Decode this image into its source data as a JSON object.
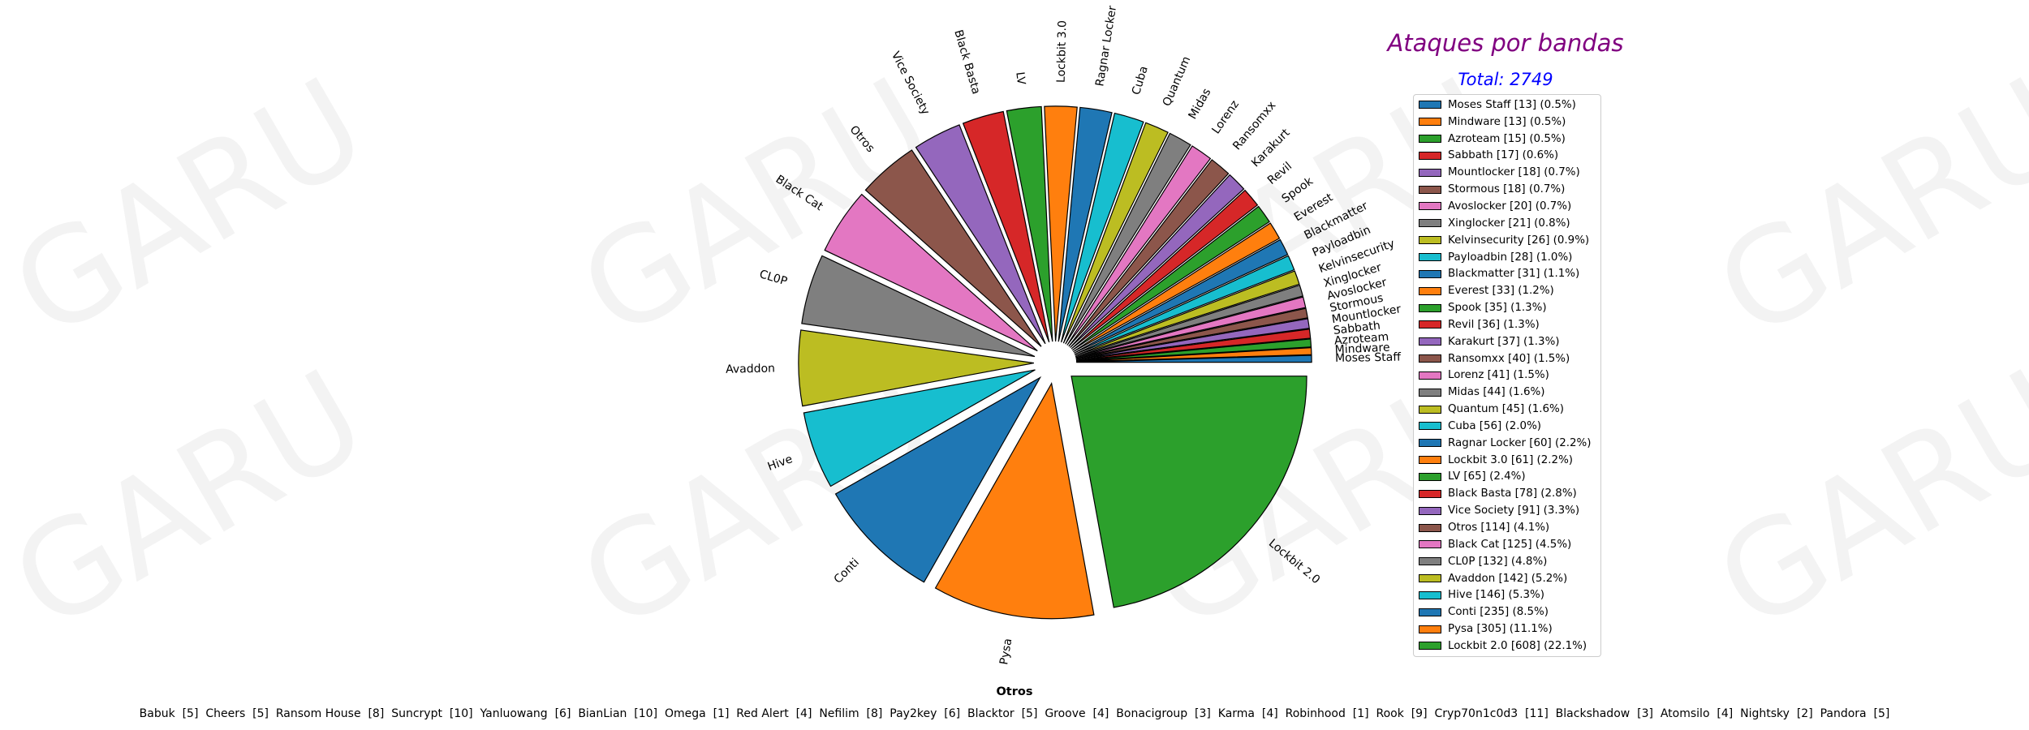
{
  "watermark": "GARU",
  "chart_data": {
    "type": "pie",
    "title": "Ataques por bandas",
    "subtitle": "Total: 2749",
    "legend_position": "right",
    "slices": [
      {
        "label": "Moses Staff",
        "value": 13,
        "legend": "Moses Staff [13] (0.5%)",
        "color": "#1f77b4"
      },
      {
        "label": "Mindware",
        "value": 13,
        "legend": "Mindware [13] (0.5%)",
        "color": "#ff7f0e"
      },
      {
        "label": "Azroteam",
        "value": 15,
        "legend": "Azroteam [15] (0.5%)",
        "color": "#2ca02c"
      },
      {
        "label": "Sabbath",
        "value": 17,
        "legend": "Sabbath [17] (0.6%)",
        "color": "#d62728"
      },
      {
        "label": "Mountlocker",
        "value": 18,
        "legend": "Mountlocker [18] (0.7%)",
        "color": "#9467bd"
      },
      {
        "label": "Stormous",
        "value": 18,
        "legend": "Stormous [18] (0.7%)",
        "color": "#8c564b"
      },
      {
        "label": "Avoslocker",
        "value": 20,
        "legend": "Avoslocker [20] (0.7%)",
        "color": "#e377c2"
      },
      {
        "label": "Xinglocker",
        "value": 21,
        "legend": "Xinglocker [21] (0.8%)",
        "color": "#7f7f7f"
      },
      {
        "label": "Kelvinsecurity",
        "value": 26,
        "legend": "Kelvinsecurity [26] (0.9%)",
        "color": "#bcbd22"
      },
      {
        "label": "Payloadbin",
        "value": 28,
        "legend": "Payloadbin [28] (1.0%)",
        "color": "#17becf"
      },
      {
        "label": "Blackmatter",
        "value": 31,
        "legend": "Blackmatter [31] (1.1%)",
        "color": "#1f77b4"
      },
      {
        "label": "Everest",
        "value": 33,
        "legend": "Everest [33] (1.2%)",
        "color": "#ff7f0e"
      },
      {
        "label": "Spook",
        "value": 35,
        "legend": "Spook [35] (1.3%)",
        "color": "#2ca02c"
      },
      {
        "label": "Revil",
        "value": 36,
        "legend": "Revil [36] (1.3%)",
        "color": "#d62728"
      },
      {
        "label": "Karakurt",
        "value": 37,
        "legend": "Karakurt [37] (1.3%)",
        "color": "#9467bd"
      },
      {
        "label": "Ransomxx",
        "value": 40,
        "legend": "Ransomxx [40] (1.5%)",
        "color": "#8c564b"
      },
      {
        "label": "Lorenz",
        "value": 41,
        "legend": "Lorenz [41] (1.5%)",
        "color": "#e377c2"
      },
      {
        "label": "Midas",
        "value": 44,
        "legend": "Midas [44] (1.6%)",
        "color": "#7f7f7f"
      },
      {
        "label": "Quantum",
        "value": 45,
        "legend": "Quantum [45] (1.6%)",
        "color": "#bcbd22"
      },
      {
        "label": "Cuba",
        "value": 56,
        "legend": "Cuba [56] (2.0%)",
        "color": "#17becf"
      },
      {
        "label": "Ragnar Locker",
        "value": 60,
        "legend": "Ragnar Locker [60] (2.2%)",
        "color": "#1f77b4"
      },
      {
        "label": "Lockbit 3.0",
        "value": 61,
        "legend": "Lockbit 3.0 [61] (2.2%)",
        "color": "#ff7f0e"
      },
      {
        "label": "LV",
        "value": 65,
        "legend": "LV [65] (2.4%)",
        "color": "#2ca02c"
      },
      {
        "label": "Black Basta",
        "value": 78,
        "legend": "Black Basta [78] (2.8%)",
        "color": "#d62728"
      },
      {
        "label": "Vice Society",
        "value": 91,
        "legend": "Vice Society [91] (3.3%)",
        "color": "#9467bd"
      },
      {
        "label": "Otros",
        "value": 114,
        "legend": "Otros [114] (4.1%)",
        "color": "#8c564b"
      },
      {
        "label": "Black Cat",
        "value": 125,
        "legend": "Black Cat [125] (4.5%)",
        "color": "#e377c2"
      },
      {
        "label": "CL0P",
        "value": 132,
        "legend": "CL0P [132] (4.8%)",
        "color": "#7f7f7f"
      },
      {
        "label": "Avaddon",
        "value": 142,
        "legend": "Avaddon [142] (5.2%)",
        "color": "#bcbd22"
      },
      {
        "label": "Hive",
        "value": 146,
        "legend": "Hive [146] (5.3%)",
        "color": "#17becf"
      },
      {
        "label": "Conti",
        "value": 235,
        "legend": "Conti [235] (8.5%)",
        "color": "#1f77b4"
      },
      {
        "label": "Pysa",
        "value": 305,
        "legend": "Pysa [305] (11.1%)",
        "color": "#ff7f0e"
      },
      {
        "label": "Lockbit 2.0",
        "value": 608,
        "legend": "Lockbit 2.0 [608] (22.1%)",
        "color": "#2ca02c"
      }
    ]
  },
  "otros": {
    "title": "Otros",
    "text": "Babuk  [5]  Cheers  [5]  Ransom House  [8]  Suncrypt  [10]  Yanluowang  [6]  BianLian  [10]  Omega  [1]  Red Alert  [4]  Nefilim  [8]  Pay2key  [6]  Blacktor  [5]  Groove  [4]  Bonacigroup  [3]  Karma  [4]  Robinhood  [1]  Rook  [9]  Cryp70n1c0d3  [11]  Blackshadow  [3]  Atomsilo  [4]  Nightsky  [2]  Pandora  [5]"
  }
}
